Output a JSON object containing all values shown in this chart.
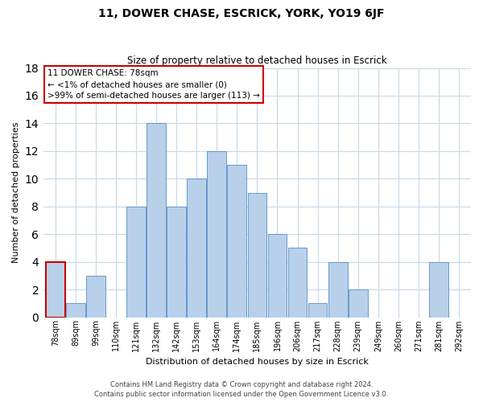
{
  "title": "11, DOWER CHASE, ESCRICK, YORK, YO19 6JF",
  "subtitle": "Size of property relative to detached houses in Escrick",
  "xlabel": "Distribution of detached houses by size in Escrick",
  "ylabel": "Number of detached properties",
  "categories": [
    "78sqm",
    "89sqm",
    "99sqm",
    "110sqm",
    "121sqm",
    "132sqm",
    "142sqm",
    "153sqm",
    "164sqm",
    "174sqm",
    "185sqm",
    "196sqm",
    "206sqm",
    "217sqm",
    "228sqm",
    "239sqm",
    "249sqm",
    "260sqm",
    "271sqm",
    "281sqm",
    "292sqm"
  ],
  "values": [
    4,
    1,
    3,
    0,
    8,
    14,
    8,
    10,
    12,
    11,
    9,
    6,
    5,
    1,
    4,
    2,
    0,
    0,
    0,
    4,
    0
  ],
  "bar_color": "#b8d0ea",
  "bar_edge_color": "#6699cc",
  "highlight_index": 0,
  "highlight_bar_edge_color": "#cc0000",
  "annotation_box_edge_color": "#cc0000",
  "annotation_text_line1": "11 DOWER CHASE: 78sqm",
  "annotation_text_line2": "← <1% of detached houses are smaller (0)",
  "annotation_text_line3": ">99% of semi-detached houses are larger (113) →",
  "ylim": [
    0,
    18
  ],
  "yticks": [
    0,
    2,
    4,
    6,
    8,
    10,
    12,
    14,
    16,
    18
  ],
  "footer_line1": "Contains HM Land Registry data © Crown copyright and database right 2024.",
  "footer_line2": "Contains public sector information licensed under the Open Government Licence v3.0.",
  "background_color": "#ffffff",
  "grid_color": "#c8d8e8"
}
